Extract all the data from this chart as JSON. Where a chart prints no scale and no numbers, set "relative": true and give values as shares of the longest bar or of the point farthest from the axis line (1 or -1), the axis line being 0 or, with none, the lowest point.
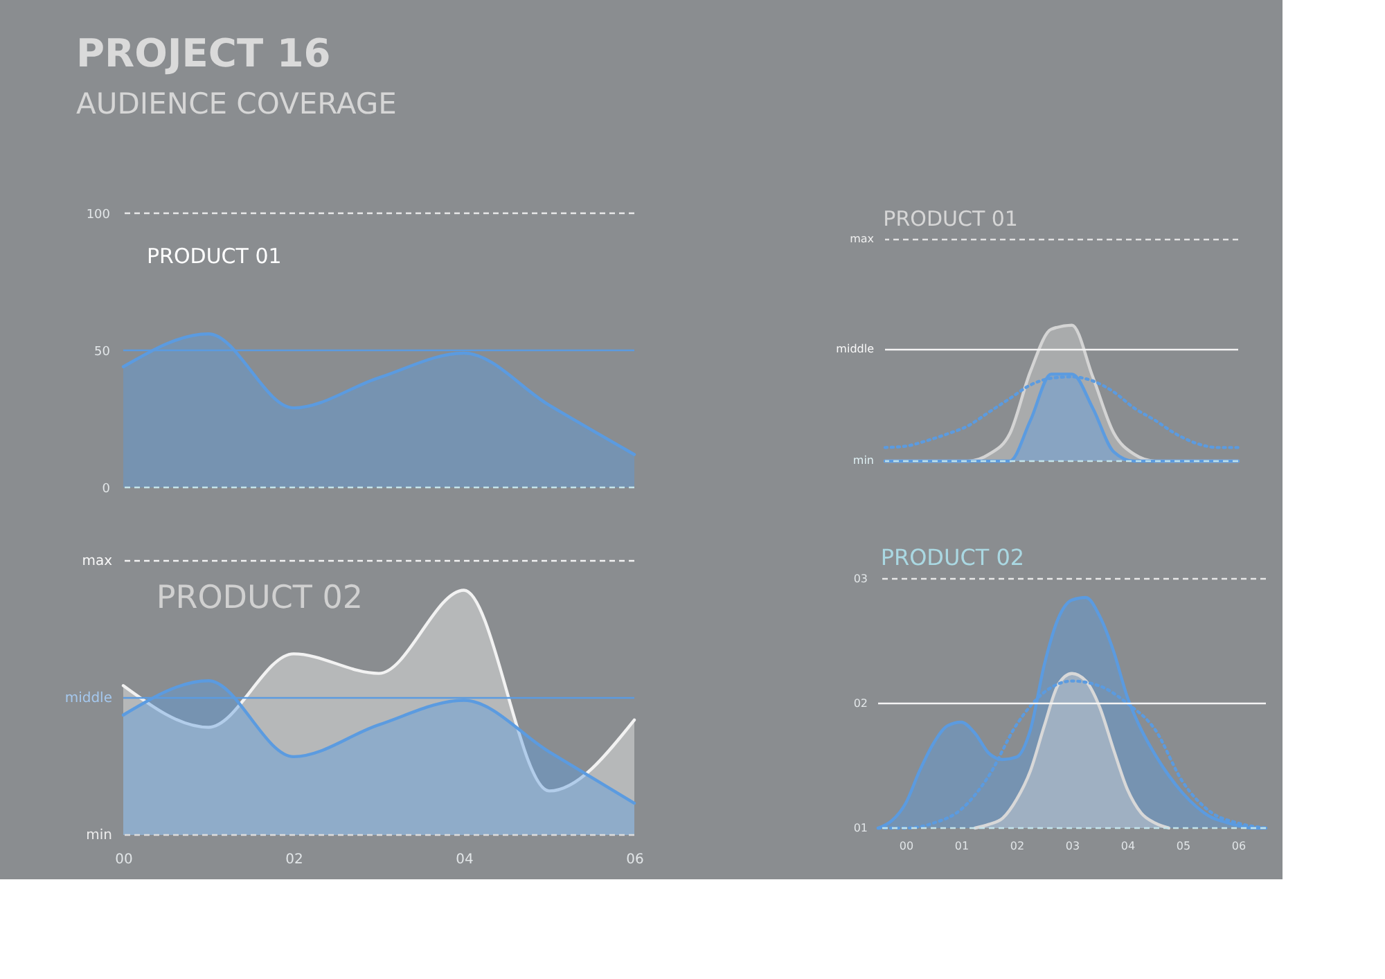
{
  "chart_data": [
    {
      "type": "other",
      "title": "PROJECT 16",
      "subtitle": "AUDIENCE COVERAGE"
    },
    {
      "type": "area",
      "title": "PRODUCT 01",
      "categories": [
        null,
        null,
        null,
        null,
        null,
        null,
        null
      ],
      "series": [
        {
          "color": "#5b9be0",
          "values": [
            44,
            56,
            29,
            40,
            49,
            30,
            12
          ]
        }
      ],
      "ylim": [
        0,
        100
      ],
      "yticks": [
        0,
        50,
        100
      ],
      "tick_labels": "y",
      "ref_lines": [
        {
          "axis": "y",
          "value": 100,
          "color": "#e8e8e8",
          "line_style": "dashed"
        },
        {
          "axis": "y",
          "value": 50,
          "color": "#5b9be0"
        },
        {
          "axis": "y",
          "value": 0,
          "color": "#c4e4ea",
          "line_style": "dashed"
        }
      ]
    },
    {
      "type": "area",
      "title": "PRODUCT 01",
      "relative": true,
      "categories": [
        null,
        null,
        null,
        null,
        null,
        null,
        null,
        null,
        null,
        null,
        null,
        null,
        null,
        null,
        null,
        null,
        null,
        null
      ],
      "series": [
        {
          "color": "#d4d4d4",
          "values": [
            0,
            0,
            0,
            0,
            0,
            0.05,
            0.2,
            0.66,
            0.97,
            1.0,
            0.62,
            0.21,
            0.05,
            0,
            0,
            0,
            0,
            0
          ]
        },
        {
          "color": "#5b9be0",
          "values": [
            0,
            0,
            0,
            0,
            0,
            0,
            0,
            0.3,
            0.64,
            0.64,
            0.39,
            0.07,
            0,
            0,
            0,
            0,
            0,
            0
          ]
        },
        {
          "type": "line",
          "line_style": "dotted",
          "color": "#5b9be0",
          "values": [
            0.1,
            0.11,
            0.15,
            0.2,
            0.26,
            0.36,
            0.46,
            0.56,
            0.61,
            0.62,
            0.59,
            0.51,
            0.39,
            0.3,
            0.2,
            0.13,
            0.1,
            0.1
          ]
        }
      ],
      "tick_labels": false,
      "ref_lines": [
        {
          "axis": "y",
          "value": 1.63,
          "label": "max",
          "color": "#e2e2e2",
          "line_style": "dashed"
        },
        {
          "axis": "y",
          "value": 0.82,
          "label": "middle",
          "color": "#f4f4f4"
        },
        {
          "axis": "y",
          "value": 0,
          "label": "min",
          "color": "#c4e4ea",
          "line_style": "dashed"
        }
      ]
    },
    {
      "type": "area",
      "title": "PRODUCT 02",
      "relative": true,
      "categories": [
        "00",
        null,
        "02",
        null,
        "04",
        null,
        "06"
      ],
      "series": [
        {
          "color": "#f2f2f2",
          "values": [
            0.61,
            0.44,
            0.74,
            0.66,
            1.0,
            0.18,
            0.47
          ]
        },
        {
          "color": "#5b9be0",
          "values": [
            0.49,
            0.63,
            0.32,
            0.45,
            0.55,
            0.34,
            0.13
          ]
        }
      ],
      "ref_lines": [
        {
          "axis": "y",
          "value": 1.12,
          "label": "max",
          "color": "#f2f2f2",
          "line_style": "dashed"
        },
        {
          "axis": "y",
          "value": 0.56,
          "label": "middle",
          "color": "#5b9be0"
        },
        {
          "axis": "y",
          "value": 0,
          "label": "min",
          "color": "#dcdcdc",
          "line_style": "dashed"
        }
      ]
    },
    {
      "type": "area",
      "title": "PRODUCT 02",
      "x": [
        -0.5,
        -0.25,
        0,
        0.25,
        0.5,
        0.75,
        1,
        1.25,
        1.5,
        1.75,
        2,
        2.25,
        2.5,
        2.75,
        3,
        3.25,
        3.5,
        3.75,
        4,
        4.25,
        4.5,
        4.75,
        5,
        5.25,
        5.5,
        5.75,
        6,
        6.25,
        6.5
      ],
      "series": [
        {
          "color": "#5b9be0",
          "values": [
            1.0,
            1.06,
            1.2,
            1.46,
            1.68,
            1.82,
            1.85,
            1.76,
            1.6,
            1.55,
            1.57,
            1.79,
            2.31,
            2.68,
            2.83,
            2.85,
            2.7,
            2.42,
            2.05,
            1.79,
            1.59,
            1.42,
            1.28,
            1.17,
            1.09,
            1.05,
            1.02,
            1.0,
            1.0
          ]
        },
        {
          "color": "#d8d8d8",
          "x": [
            1.25,
            1.5,
            1.75,
            2,
            2.25,
            2.5,
            2.75,
            3,
            3.25,
            3.5,
            3.75,
            4,
            4.25,
            4.5,
            4.75
          ],
          "values": [
            1.0,
            1.03,
            1.08,
            1.23,
            1.46,
            1.82,
            2.15,
            2.24,
            2.18,
            1.97,
            1.63,
            1.31,
            1.12,
            1.04,
            1.0
          ]
        },
        {
          "type": "line",
          "line_style": "dotted",
          "color": "#5b9be0",
          "x": [
            -0.5,
            0,
            0.5,
            1,
            1.5,
            2,
            2.5,
            3,
            3.5,
            4,
            4.5,
            5,
            5.5,
            6,
            6.5
          ],
          "values": [
            1.0,
            1.0,
            1.04,
            1.15,
            1.42,
            1.83,
            2.09,
            2.18,
            2.14,
            2.0,
            1.79,
            1.37,
            1.13,
            1.04,
            1.0
          ]
        }
      ],
      "xlim": [
        -0.5,
        6.5
      ],
      "xticks": [
        {
          "value": 0,
          "label": "00"
        },
        {
          "value": 1,
          "label": "01"
        },
        {
          "value": 2,
          "label": "02"
        },
        {
          "value": 3,
          "label": "03"
        },
        {
          "value": 4,
          "label": "04"
        },
        {
          "value": 5,
          "label": "05"
        },
        {
          "value": 6,
          "label": "06"
        }
      ],
      "ylim": [
        1,
        3
      ],
      "yticks": [
        {
          "value": 1,
          "label": "01"
        },
        {
          "value": 2,
          "label": "02"
        },
        {
          "value": 3,
          "label": "03"
        }
      ],
      "ref_lines": [
        {
          "axis": "y",
          "value": 3,
          "color": "#e8e8e8",
          "line_style": "dashed"
        },
        {
          "axis": "y",
          "value": 2,
          "color": "#f4f4f4"
        },
        {
          "axis": "y",
          "value": 1,
          "color": "#c4e4ea",
          "line_style": "dashed"
        }
      ]
    }
  ]
}
